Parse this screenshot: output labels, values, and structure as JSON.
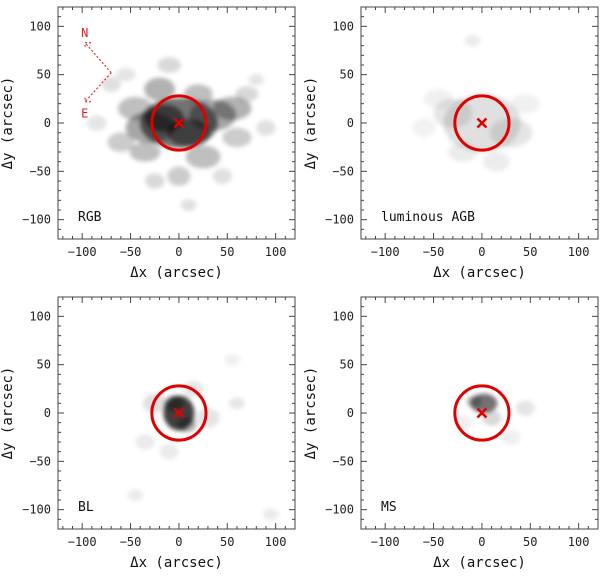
{
  "figure": {
    "panel_count": 4
  },
  "colors": {
    "aperture": "#e00000",
    "center": "#e00000",
    "compass": "#d83030",
    "density": "#000000"
  },
  "chart_data": [
    {
      "type": "heatmap",
      "panel_label": "RGB",
      "xlabel": "Δx (arcsec)",
      "ylabel": "Δy (arcsec)",
      "xlim": [
        -125,
        120
      ],
      "ylim": [
        -120,
        120
      ],
      "xticks": [
        -100,
        -50,
        0,
        50,
        100
      ],
      "yticks": [
        -100,
        -50,
        0,
        50,
        100
      ],
      "xtick_labels": [
        "−100",
        "−50",
        "0",
        "50",
        "100"
      ],
      "ytick_labels": [
        "−100",
        "−50",
        "0",
        "50",
        "100"
      ],
      "aperture": {
        "center": [
          0,
          0
        ],
        "radius": 28
      },
      "center_marker": [
        0,
        0
      ],
      "compass": {
        "north": "N",
        "east": "E"
      },
      "blobs": [
        [
          0,
          0,
          40,
          26,
          0.55
        ],
        [
          -15,
          5,
          20,
          14,
          0.5
        ],
        [
          10,
          -10,
          22,
          14,
          0.45
        ],
        [
          -30,
          -5,
          25,
          16,
          0.35
        ],
        [
          35,
          8,
          24,
          16,
          0.35
        ],
        [
          55,
          15,
          20,
          12,
          0.3
        ],
        [
          -45,
          15,
          18,
          12,
          0.25
        ],
        [
          -20,
          35,
          16,
          12,
          0.3
        ],
        [
          20,
          30,
          15,
          10,
          0.25
        ],
        [
          -35,
          -30,
          16,
          10,
          0.25
        ],
        [
          25,
          -35,
          18,
          12,
          0.25
        ],
        [
          60,
          -15,
          15,
          10,
          0.2
        ],
        [
          -60,
          -20,
          14,
          10,
          0.2
        ],
        [
          0,
          -55,
          12,
          10,
          0.2
        ],
        [
          -10,
          60,
          12,
          8,
          0.15
        ],
        [
          70,
          30,
          12,
          8,
          0.15
        ],
        [
          -70,
          40,
          10,
          8,
          0.12
        ],
        [
          -85,
          0,
          10,
          8,
          0.1
        ],
        [
          90,
          -5,
          10,
          8,
          0.12
        ],
        [
          45,
          -55,
          10,
          8,
          0.12
        ],
        [
          -25,
          -60,
          10,
          8,
          0.15
        ],
        [
          10,
          -85,
          8,
          6,
          0.12
        ],
        [
          -55,
          50,
          10,
          7,
          0.1
        ],
        [
          80,
          45,
          8,
          6,
          0.1
        ]
      ]
    },
    {
      "type": "heatmap",
      "panel_label": "luminous AGB",
      "xlabel": "Δx (arcsec)",
      "ylabel": "Δy (arcsec)",
      "xlim": [
        -125,
        120
      ],
      "ylim": [
        -120,
        120
      ],
      "xticks": [
        -100,
        -50,
        0,
        50,
        100
      ],
      "yticks": [
        -100,
        -50,
        0,
        50,
        100
      ],
      "xtick_labels": [
        "−100",
        "−50",
        "0",
        "50",
        "100"
      ],
      "ytick_labels": [
        "−100",
        "−50",
        "0",
        "50",
        "100"
      ],
      "aperture": {
        "center": [
          0,
          0
        ],
        "radius": 28
      },
      "center_marker": [
        0,
        0
      ],
      "blobs": [
        [
          0,
          0,
          40,
          30,
          0.12
        ],
        [
          -30,
          10,
          20,
          15,
          0.1
        ],
        [
          30,
          -10,
          22,
          15,
          0.1
        ],
        [
          -10,
          85,
          8,
          6,
          0.08
        ],
        [
          -45,
          25,
          15,
          10,
          0.06
        ],
        [
          45,
          20,
          15,
          10,
          0.06
        ],
        [
          -20,
          -30,
          15,
          10,
          0.08
        ],
        [
          15,
          -40,
          14,
          10,
          0.07
        ],
        [
          -60,
          -5,
          12,
          10,
          0.05
        ]
      ]
    },
    {
      "type": "heatmap",
      "panel_label": "BL",
      "xlabel": "Δx (arcsec)",
      "ylabel": "Δy (arcsec)",
      "xlim": [
        -125,
        120
      ],
      "ylim": [
        -120,
        120
      ],
      "xticks": [
        -100,
        -50,
        0,
        50,
        100
      ],
      "yticks": [
        -100,
        -50,
        0,
        50,
        100
      ],
      "xtick_labels": [
        "−100",
        "−50",
        "0",
        "50",
        "100"
      ],
      "ytick_labels": [
        "−100",
        "−50",
        "0",
        "50",
        "100"
      ],
      "aperture": {
        "center": [
          0,
          0
        ],
        "radius": 28
      },
      "center_marker": [
        0,
        0
      ],
      "blobs": [
        [
          0,
          0,
          16,
          18,
          0.75
        ],
        [
          -5,
          10,
          10,
          8,
          0.35
        ],
        [
          8,
          -12,
          10,
          8,
          0.3
        ],
        [
          -25,
          10,
          12,
          10,
          0.12
        ],
        [
          30,
          -5,
          12,
          10,
          0.1
        ],
        [
          15,
          25,
          10,
          8,
          0.1
        ],
        [
          60,
          10,
          8,
          6,
          0.1
        ],
        [
          -35,
          -30,
          10,
          8,
          0.08
        ],
        [
          -10,
          -40,
          10,
          8,
          0.08
        ],
        [
          -45,
          -85,
          8,
          6,
          0.08
        ],
        [
          95,
          -105,
          8,
          6,
          0.08
        ],
        [
          55,
          55,
          8,
          6,
          0.06
        ]
      ]
    },
    {
      "type": "heatmap",
      "panel_label": "MS",
      "xlabel": "Δx (arcsec)",
      "ylabel": "Δy (arcsec)",
      "xlim": [
        -125,
        120
      ],
      "ylim": [
        -120,
        120
      ],
      "xticks": [
        -100,
        -50,
        0,
        50,
        100
      ],
      "yticks": [
        -100,
        -50,
        0,
        50,
        100
      ],
      "xtick_labels": [
        "−100",
        "−50",
        "0",
        "50",
        "100"
      ],
      "ytick_labels": [
        "−100",
        "−50",
        "0",
        "50",
        "100"
      ],
      "aperture": {
        "center": [
          0,
          0
        ],
        "radius": 28
      },
      "center_marker": [
        0,
        0
      ],
      "blobs": [
        [
          2,
          10,
          14,
          10,
          0.55
        ],
        [
          -8,
          12,
          8,
          6,
          0.25
        ],
        [
          10,
          -5,
          10,
          8,
          0.15
        ],
        [
          45,
          5,
          10,
          8,
          0.1
        ],
        [
          -20,
          -10,
          10,
          8,
          0.06
        ],
        [
          30,
          -25,
          10,
          8,
          0.06
        ]
      ]
    }
  ]
}
